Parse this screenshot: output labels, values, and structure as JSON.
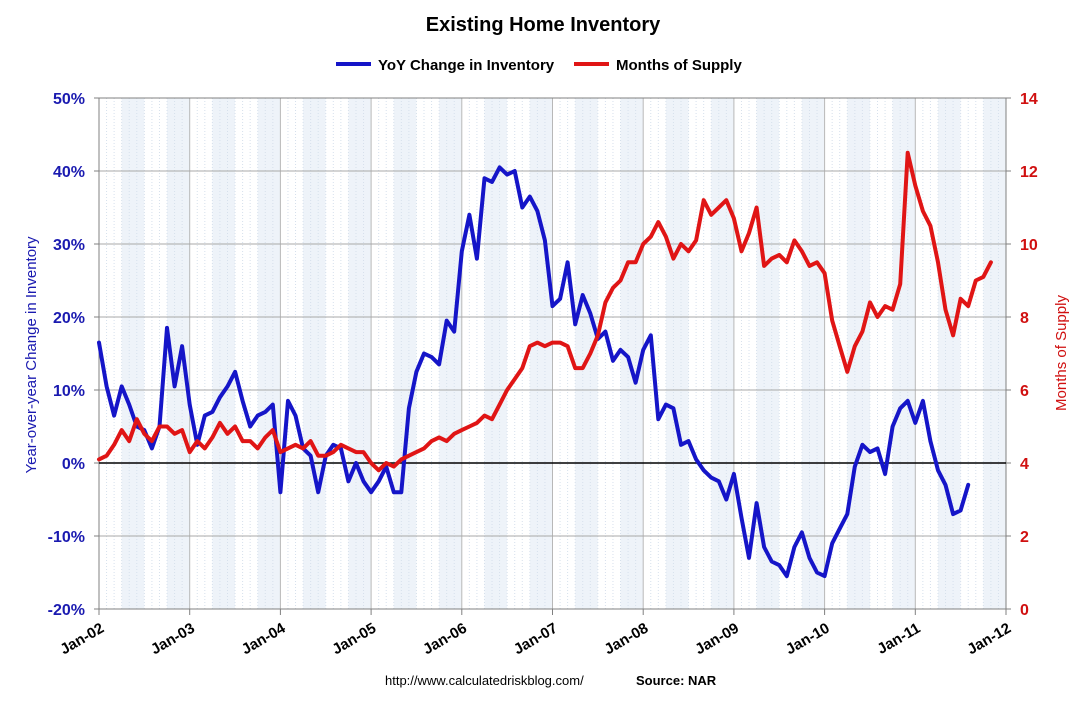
{
  "chart_data": {
    "type": "line",
    "title": "Existing Home Inventory",
    "legend_position": "top",
    "left_axis": {
      "label": "Year-over-year Change in Inventory",
      "ticks": [
        "-20%",
        "-10%",
        "0%",
        "10%",
        "20%",
        "30%",
        "40%",
        "50%"
      ],
      "range": [
        -20,
        50
      ],
      "color": "#1a1ab0"
    },
    "right_axis": {
      "label": "Months of Supply",
      "ticks": [
        "0",
        "2",
        "4",
        "6",
        "8",
        "10",
        "12",
        "14"
      ],
      "range": [
        0,
        14
      ],
      "color": "#d01010"
    },
    "x_axis": {
      "ticks": [
        "Jan-02",
        "Jan-03",
        "Jan-04",
        "Jan-05",
        "Jan-06",
        "Jan-07",
        "Jan-08",
        "Jan-09",
        "Jan-10",
        "Jan-11",
        "Jan-12"
      ],
      "start": "Jan-02",
      "end": "Jan-12"
    },
    "grid": true,
    "series": [
      {
        "name": "YoY Change in Inventory",
        "axis": "left",
        "color": "#1515c8",
        "start": "Jan-02",
        "values": [
          16.5,
          10.5,
          6.5,
          10.5,
          8,
          5,
          4.5,
          2,
          5,
          18.5,
          10.5,
          16,
          8,
          2.5,
          6.5,
          7,
          9,
          10.5,
          12.5,
          8.5,
          5,
          6.5,
          7,
          8,
          -4,
          8.5,
          6.5,
          2,
          1,
          -4,
          1,
          2.5,
          2,
          -2.5,
          0,
          -2.5,
          -4,
          -2.5,
          -0.5,
          -4,
          -4,
          7.5,
          12.5,
          15,
          14.5,
          13.5,
          19.5,
          18,
          29,
          34,
          28,
          39,
          38.5,
          40.5,
          39.5,
          40,
          35,
          36.5,
          34.5,
          30.5,
          21.5,
          22.5,
          27.5,
          19,
          23,
          20.5,
          17,
          18,
          14,
          15.5,
          14.5,
          11,
          15.5,
          17.5,
          6,
          8,
          7.5,
          2.5,
          3,
          0.5,
          -1,
          -2,
          -2.5,
          -5,
          -1.5,
          -7.5,
          -13,
          -5.5,
          -11.5,
          -13.5,
          -14,
          -15.5,
          -11.5,
          -9.5,
          -13,
          -15,
          -15.5,
          -11,
          -9,
          -7,
          -0.5,
          2.5,
          1.5,
          2,
          -1.5,
          5,
          7.5,
          8.5,
          5.5,
          8.5,
          3,
          -1,
          -3,
          -7,
          -6.5,
          -3
        ]
      },
      {
        "name": "Months of Supply",
        "axis": "right",
        "color": "#e01515",
        "start": "Jan-02",
        "values": [
          4.1,
          4.2,
          4.5,
          4.9,
          4.6,
          5.2,
          4.8,
          4.6,
          5.0,
          5.0,
          4.8,
          4.9,
          4.3,
          4.6,
          4.4,
          4.7,
          5.1,
          4.8,
          5.0,
          4.6,
          4.6,
          4.4,
          4.7,
          4.9,
          4.3,
          4.4,
          4.5,
          4.4,
          4.6,
          4.2,
          4.2,
          4.3,
          4.5,
          4.4,
          4.3,
          4.3,
          4.0,
          3.8,
          4.0,
          3.9,
          4.1,
          4.2,
          4.3,
          4.4,
          4.6,
          4.7,
          4.6,
          4.8,
          4.9,
          5.0,
          5.1,
          5.3,
          5.2,
          5.6,
          6.0,
          6.3,
          6.6,
          7.2,
          7.3,
          7.2,
          7.3,
          7.3,
          7.2,
          6.6,
          6.6,
          7.0,
          7.5,
          8.4,
          8.8,
          9.0,
          9.5,
          9.5,
          10.0,
          10.2,
          10.6,
          10.2,
          9.6,
          10.0,
          9.8,
          10.1,
          11.2,
          10.8,
          11.0,
          11.2,
          10.7,
          9.8,
          10.3,
          11.0,
          9.4,
          9.6,
          9.7,
          9.5,
          10.1,
          9.8,
          9.4,
          9.5,
          9.2,
          7.9,
          7.2,
          6.5,
          7.2,
          7.6,
          8.4,
          8.0,
          8.3,
          8.2,
          8.9,
          12.5,
          11.6,
          10.9,
          10.5,
          9.5,
          8.2,
          7.5,
          8.5,
          8.3,
          9.0,
          9.1,
          9.5
        ]
      }
    ]
  },
  "footer": {
    "url": "http://www.calculatedriskblog.com/",
    "source": "Source: NAR"
  }
}
